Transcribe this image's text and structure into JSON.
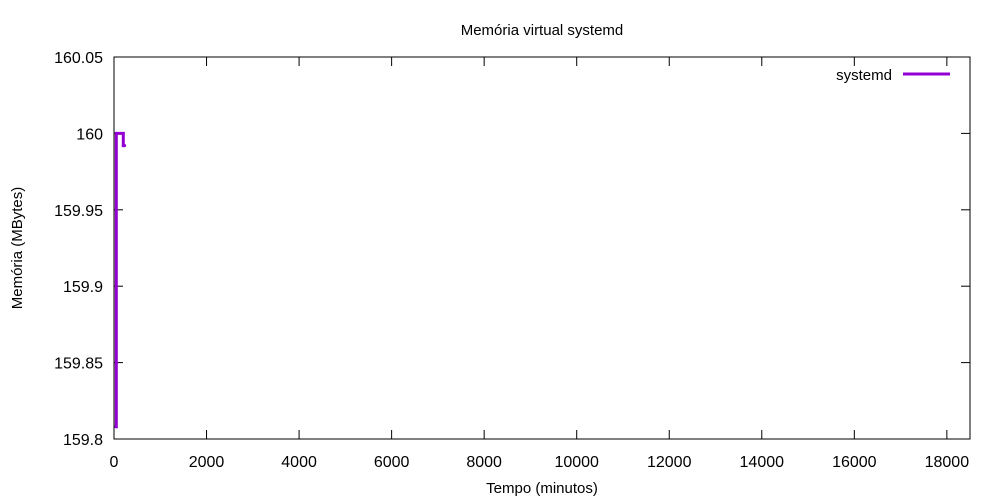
{
  "chart_data": {
    "type": "line",
    "title": "Memória virtual systemd",
    "xlabel": "Tempo (minutos)",
    "ylabel": "Memória (MBytes)",
    "xlim": [
      0,
      18500
    ],
    "ylim": [
      159.8,
      160.05
    ],
    "xticks": [
      0,
      2000,
      4000,
      6000,
      8000,
      10000,
      12000,
      14000,
      16000,
      18000
    ],
    "yticks": [
      159.8,
      159.85,
      159.9,
      159.95,
      160,
      160.05
    ],
    "xtick_labels": [
      "0",
      "2000",
      "4000",
      "6000",
      "8000",
      "10000",
      "12000",
      "14000",
      "16000",
      "18000"
    ],
    "ytick_labels": [
      "159.8",
      "159.85",
      "159.9",
      "159.95",
      "160",
      "160.05"
    ],
    "grid": false,
    "legend_position": "top-right",
    "series": [
      {
        "name": "systemd",
        "color": "#9400d3",
        "x": [
          40,
          50,
          50,
          200,
          200,
          220,
          230
        ],
        "y": [
          159.808,
          159.808,
          160.0,
          160.0,
          159.992,
          159.992,
          159.992
        ]
      }
    ]
  }
}
